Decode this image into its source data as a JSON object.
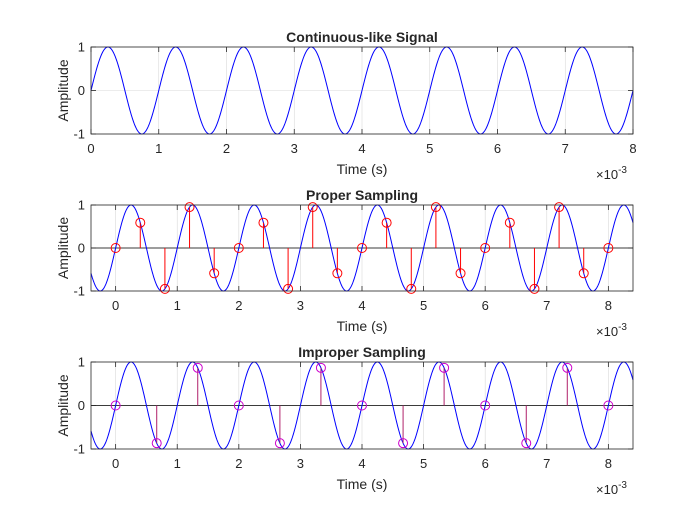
{
  "figure": {
    "colors": {
      "background": "#ffffff",
      "axes": "#262626",
      "grid": "#d9d9d9",
      "signal": "#0000ff",
      "proper_samples": "#ff0000",
      "improper_samples": "#cc00cc",
      "improper_stems": "#b0206a"
    }
  },
  "chart_data": [
    {
      "type": "line",
      "title": "Continuous-like Signal",
      "xlabel": "Time (s)",
      "ylabel": "Amplitude",
      "x_exponent_label": "×10",
      "x_exponent": "-3",
      "xlim": [
        0,
        0.008
      ],
      "ylim": [
        -1,
        1
      ],
      "xticks": [
        0,
        1,
        2,
        3,
        4,
        5,
        6,
        7,
        8
      ],
      "yticks": [
        -1,
        0,
        1
      ],
      "grid": true,
      "signal": {
        "function": "sin(2*pi*f*t)",
        "frequency_hz": 1000,
        "t_start": 0,
        "t_end": 0.008
      }
    },
    {
      "type": "line+stem",
      "title": "Proper Sampling",
      "xlabel": "Time (s)",
      "ylabel": "Amplitude",
      "x_exponent_label": "×10",
      "x_exponent": "-3",
      "xlim": [
        -0.0004,
        0.0084
      ],
      "ylim": [
        -1,
        1
      ],
      "xticks": [
        0,
        1,
        2,
        3,
        4,
        5,
        6,
        7,
        8
      ],
      "yticks": [
        -1,
        0,
        1
      ],
      "grid": true,
      "signal": {
        "function": "sin(2*pi*f*t)",
        "frequency_hz": 1000,
        "t_start": -0.0004,
        "t_end": 0.0084
      },
      "samples": {
        "sampling_rate_hz": 2500,
        "t": [
          0,
          0.0004,
          0.0008,
          0.0012,
          0.0016,
          0.002,
          0.0024,
          0.0028,
          0.0032,
          0.0036,
          0.004,
          0.0044,
          0.0048,
          0.0052,
          0.0056,
          0.006,
          0.0064,
          0.0068,
          0.0072,
          0.0076,
          0.008
        ],
        "values": [
          0,
          0.588,
          -0.951,
          0.951,
          -0.588,
          0,
          0.588,
          -0.951,
          0.951,
          -0.588,
          0,
          0.588,
          -0.951,
          0.951,
          -0.588,
          0,
          0.588,
          -0.951,
          0.951,
          -0.588,
          0
        ]
      }
    },
    {
      "type": "line+stem",
      "title": "Improper Sampling",
      "xlabel": "Time (s)",
      "ylabel": "Amplitude",
      "x_exponent_label": "×10",
      "x_exponent": "-3",
      "xlim": [
        -0.0004,
        0.0084
      ],
      "ylim": [
        -1,
        1
      ],
      "xticks": [
        0,
        1,
        2,
        3,
        4,
        5,
        6,
        7,
        8
      ],
      "yticks": [
        -1,
        0,
        1
      ],
      "grid": true,
      "signal": {
        "function": "sin(2*pi*f*t)",
        "frequency_hz": 1000,
        "t_start": -0.0004,
        "t_end": 0.0084
      },
      "samples": {
        "sampling_rate_hz": 1500,
        "t": [
          0,
          0.000667,
          0.001333,
          0.002,
          0.002667,
          0.003333,
          0.004,
          0.004667,
          0.005333,
          0.006,
          0.006667,
          0.007333,
          0.008
        ],
        "values": [
          0,
          -0.866,
          0.866,
          0,
          -0.866,
          0.866,
          0,
          -0.866,
          0.866,
          0,
          -0.866,
          0.866,
          0
        ]
      }
    }
  ]
}
